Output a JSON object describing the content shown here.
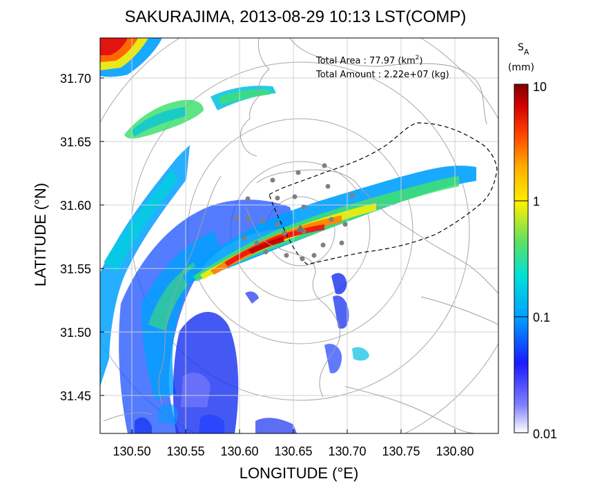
{
  "chart_data": {
    "type": "heatmap",
    "title": "SAKURAJIMA, 2013-08-29 10:13 LST(COMP)",
    "xlabel": "LONGITUDE (°E)",
    "ylabel": "LATITUDE (°N)",
    "xlim": [
      130.475,
      130.845
    ],
    "ylim": [
      31.42,
      31.735
    ],
    "xticks": [
      130.5,
      130.55,
      130.6,
      130.65,
      130.7,
      130.75,
      130.8
    ],
    "xtick_labels": [
      "130.50",
      "130.55",
      "130.60",
      "130.65",
      "130.70",
      "130.75",
      "130.80"
    ],
    "yticks": [
      31.45,
      31.5,
      31.55,
      31.6,
      31.65,
      31.7
    ],
    "ytick_labels": [
      "31.45",
      "31.50",
      "31.55",
      "31.60",
      "31.65",
      "31.70"
    ],
    "grid": true,
    "annotations": {
      "area_label": "Total Area    : 77.97 (km",
      "area_sup": "2",
      "area_close": ")",
      "amount_label": "Total Amount : 2.22e+07 (kg)"
    },
    "colorbar": {
      "symbol": "S",
      "subscript": "A",
      "unit": "(mm)",
      "scale": "log",
      "range": [
        0.01,
        10
      ],
      "ticks": [
        0.01,
        0.1,
        1,
        10
      ],
      "tick_labels": [
        "0.01",
        "0.1",
        "1",
        "10"
      ],
      "colormap": [
        "#ffffff",
        "#1a1aff",
        "#0060ff",
        "#00a0ff",
        "#00e0d8",
        "#40e070",
        "#a0e040",
        "#fff000",
        "#ffb000",
        "#ff6000",
        "#f01010",
        "#800000"
      ]
    },
    "vent_location": [
      130.657,
      31.58
    ],
    "range_rings_center": [
      130.657,
      31.58
    ]
  }
}
